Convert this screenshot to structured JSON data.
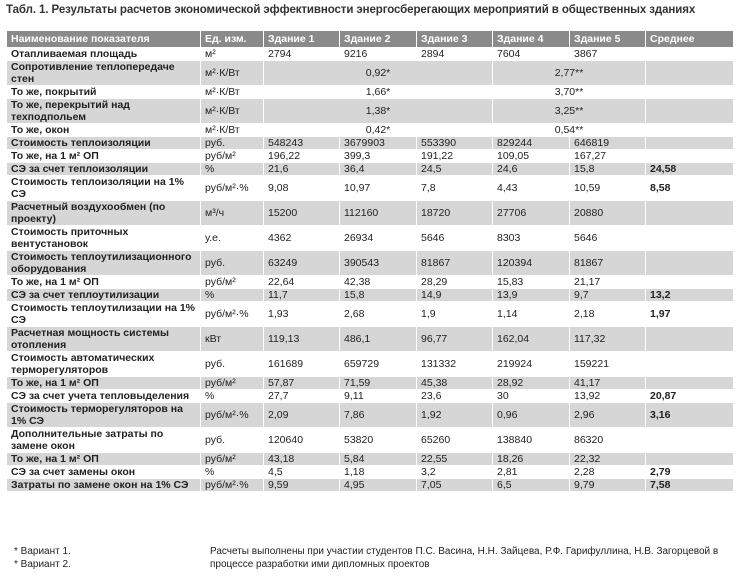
{
  "caption": "Табл. 1. Результаты расчетов экономической эффективности энергосберегающих мероприятий в общественных зданиях",
  "columns": [
    "Наименование показателя",
    "Ед. изм.",
    "Здание 1",
    "Здание 2",
    "Здание 3",
    "Здание 4",
    "Здание 5",
    "Среднее"
  ],
  "rows": [
    {
      "label": "Отапливаемая площадь",
      "unit": "м²",
      "v": [
        "2794",
        "9216",
        "2894",
        "7604",
        "3867"
      ],
      "avg": ""
    },
    {
      "label": "Сопротивление теплопередаче стен",
      "unit": "м²·К/Вт",
      "m1": "0,92*",
      "m2": "2,77**"
    },
    {
      "label": "То же, покрытий",
      "unit": "м²·К/Вт",
      "m1": "1,66*",
      "m2": "3,70**"
    },
    {
      "label": "То же, перекрытий над техподпольем",
      "unit": "м²·К/Вт",
      "m1": "1,38*",
      "m2": "3,25**"
    },
    {
      "label": "То же, окон",
      "unit": "м²·К/Вт",
      "m1": "0,42*",
      "m2": "0,54**"
    },
    {
      "label": "Стоимость теплоизоляции",
      "unit": "руб.",
      "v": [
        "548243",
        "3679903",
        "553390",
        "829244",
        "646819"
      ],
      "avg": ""
    },
    {
      "label": "То же, на 1 м² ОП",
      "unit": "руб/м²",
      "v": [
        "196,22",
        "399,3",
        "191,22",
        "109,05",
        "167,27"
      ],
      "avg": ""
    },
    {
      "label": "СЭ за счет теплоизоляции",
      "unit": "%",
      "v": [
        "21,6",
        "36,4",
        "24,5",
        "24,6",
        "15,8"
      ],
      "avg": "24,58"
    },
    {
      "label": "Стоимость теплоизоляции на 1% СЭ",
      "unit": "руб/м²·%",
      "v": [
        "9,08",
        "10,97",
        "7,8",
        "4,43",
        "10,59"
      ],
      "avg": "8,58"
    },
    {
      "label": "Расчетный воздухообмен (по проекту)",
      "unit": "м³/ч",
      "v": [
        "15200",
        "112160",
        "18720",
        "27706",
        "20880"
      ],
      "avg": ""
    },
    {
      "label": "Стоимость приточных вентустановок",
      "unit": "у.е.",
      "v": [
        "4362",
        "26934",
        "5646",
        "8303",
        "5646"
      ],
      "avg": ""
    },
    {
      "label": "Стоимость теплоутилизационного оборудования",
      "unit": "руб.",
      "v": [
        "63249",
        "390543",
        "81867",
        "120394",
        "81867"
      ],
      "avg": ""
    },
    {
      "label": "То же, на 1 м² ОП",
      "unit": "руб/м²",
      "v": [
        "22,64",
        "42,38",
        "28,29",
        "15,83",
        "21,17"
      ],
      "avg": ""
    },
    {
      "label": "СЭ за счет теплоутилизации",
      "unit": "%",
      "v": [
        "11,7",
        "15,8",
        "14,9",
        "13,9",
        "9,7"
      ],
      "avg": "13,2"
    },
    {
      "label": "Стоимость теплоутилизации на 1% СЭ",
      "unit": "руб/м²·%",
      "v": [
        "1,93",
        "2,68",
        "1,9",
        "1,14",
        "2,18"
      ],
      "avg": "1,97"
    },
    {
      "label": "Расчетная мощность системы отопления",
      "unit": "кВт",
      "v": [
        "119,13",
        "486,1",
        "96,77",
        "162,04",
        "117,32"
      ],
      "avg": ""
    },
    {
      "label": "Стоимость автоматических терморегуляторов",
      "unit": "руб.",
      "v": [
        "161689",
        "659729",
        "131332",
        "219924",
        "159221"
      ],
      "avg": ""
    },
    {
      "label": "То же, на 1 м² ОП",
      "unit": "руб/м²",
      "v": [
        "57,87",
        "71,59",
        "45,38",
        "28,92",
        "41,17"
      ],
      "avg": ""
    },
    {
      "label": "СЭ за счет учета тепловыделения",
      "unit": "%",
      "v": [
        "27,7",
        "9,11",
        "23,6",
        "30",
        "13,92"
      ],
      "avg": "20,87"
    },
    {
      "label": "Стоимость терморегуляторов на 1% СЭ",
      "unit": "руб/м²·%",
      "v": [
        "2,09",
        "7,86",
        "1,92",
        "0,96",
        "2,96"
      ],
      "avg": "3,16"
    },
    {
      "label": "Дополнительные затраты по замене окон",
      "unit": "руб.",
      "v": [
        "120640",
        "53820",
        "65260",
        "138840",
        "86320"
      ],
      "avg": ""
    },
    {
      "label": "То же, на 1 м² ОП",
      "unit": "руб/м²",
      "v": [
        "43,18",
        "5,84",
        "22,55",
        "18,26",
        "22,32"
      ],
      "avg": ""
    },
    {
      "label": "СЭ за счет замены окон",
      "unit": "%",
      "v": [
        "4,5",
        "1,18",
        "3,2",
        "2,81",
        "2,28"
      ],
      "avg": "2,79"
    },
    {
      "label": "Затраты по замене окон на 1% СЭ",
      "unit": "руб/м²·%",
      "v": [
        "9,59",
        "4,95",
        "7,05",
        "6,5",
        "9,79"
      ],
      "avg": "7,58"
    }
  ],
  "footnotes": {
    "left": [
      "* Вариант 1.",
      "* Вариант 2."
    ],
    "right": "Расчеты выполнены при участии студентов П.С. Васина, Н.Н. Зайцева, Р.Ф. Гарифуллина, Н.В. Загорцевой в процессе разработки ими дипломных проектов"
  }
}
